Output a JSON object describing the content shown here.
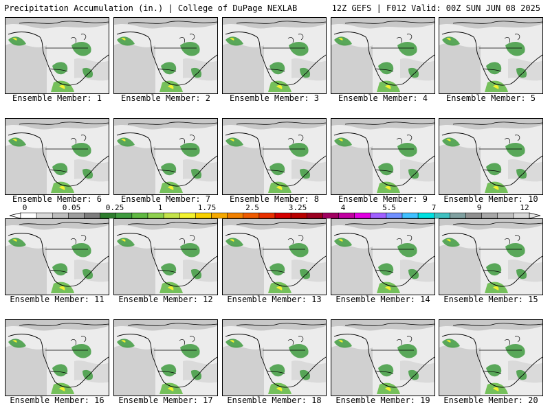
{
  "header": {
    "left": "Precipitation Accumulation (in.) | College of DuPage NEXLAB",
    "right": "12Z GEFS | F012 Valid: 00Z SUN JUN 08 2025"
  },
  "members": [
    "Ensemble Member: 1",
    "Ensemble Member: 2",
    "Ensemble Member: 3",
    "Ensemble Member: 4",
    "Ensemble Member: 5",
    "Ensemble Member: 6",
    "Ensemble Member: 7",
    "Ensemble Member: 8",
    "Ensemble Member: 9",
    "Ensemble Member: 10",
    "Ensemble Member: 11",
    "Ensemble Member: 12",
    "Ensemble Member: 13",
    "Ensemble Member: 14",
    "Ensemble Member: 15",
    "Ensemble Member: 16",
    "Ensemble Member: 17",
    "Ensemble Member: 18",
    "Ensemble Member: 19",
    "Ensemble Member: 20"
  ],
  "colorbar": {
    "tick_labels": [
      "0",
      "0.05",
      "0.25",
      "1",
      "1.75",
      "2.5",
      "3.25",
      "4",
      "5.5",
      "7",
      "9",
      "12"
    ],
    "colors": [
      "#ffffff",
      "#d9d9d9",
      "#bdbdbd",
      "#9e9e9e",
      "#7d7d7d",
      "#2e7d2e",
      "#3f9b3f",
      "#60b842",
      "#8fd14f",
      "#c4e34a",
      "#f2f230",
      "#f7d000",
      "#f5a800",
      "#f08000",
      "#ee5a00",
      "#e83000",
      "#d40000",
      "#b80000",
      "#9a0020",
      "#a00060",
      "#c000a0",
      "#e000e0",
      "#a060ff",
      "#7090ff",
      "#40c0ff",
      "#00e0e0",
      "#40c0c0",
      "#80a0a0",
      "#909090",
      "#a8a8a8",
      "#c0c0c0",
      "#d8d8d8"
    ]
  }
}
